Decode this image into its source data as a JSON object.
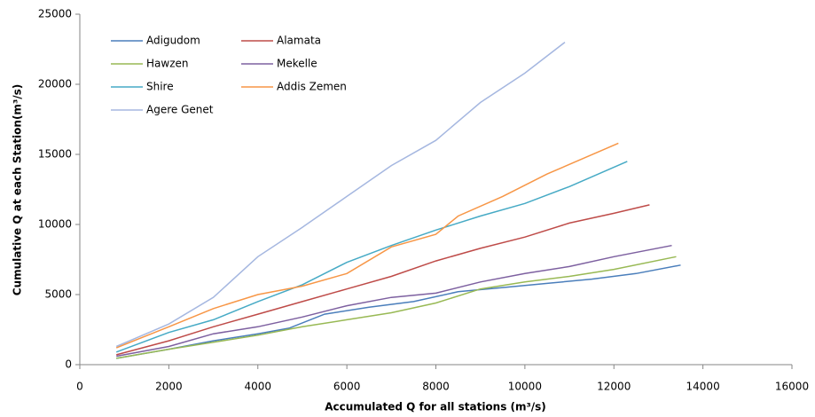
{
  "chart_data": {
    "type": "line",
    "x_label": "Accumulated Q for all stations (m³/s)",
    "y_label": "Cumulative Q at each Station(m³/s)",
    "xlim": [
      0,
      16000
    ],
    "xticks": [
      0,
      2000,
      4000,
      6000,
      8000,
      10000,
      12000,
      14000,
      16000
    ],
    "ylim": [
      0,
      25000
    ],
    "yticks": [
      0,
      5000,
      10000,
      15000,
      20000,
      25000
    ],
    "grid": false,
    "legend": "upper-left",
    "series": [
      {
        "name": "Adigudom",
        "color": "#4a7ebb",
        "x": [
          820,
          2000,
          3000,
          4000,
          4700,
          5500,
          6500,
          7500,
          8500,
          9500,
          10500,
          11500,
          12500,
          13500
        ],
        "values": [
          450,
          1100,
          1700,
          2200,
          2600,
          3600,
          4100,
          4500,
          5200,
          5500,
          5800,
          6100,
          6500,
          7100
        ]
      },
      {
        "name": "Alamata",
        "color": "#be4b48",
        "x": [
          820,
          2000,
          3000,
          4000,
          5000,
          6000,
          7000,
          8000,
          9000,
          10000,
          11000,
          12000,
          12800
        ],
        "values": [
          700,
          1700,
          2700,
          3600,
          4500,
          5400,
          6300,
          7400,
          8300,
          9100,
          10100,
          10800,
          11400
        ]
      },
      {
        "name": "Hawzen",
        "color": "#98b954",
        "x": [
          820,
          2000,
          3000,
          4000,
          5000,
          6000,
          7000,
          8000,
          9000,
          10000,
          11000,
          12000,
          13400
        ],
        "values": [
          450,
          1100,
          1600,
          2100,
          2700,
          3200,
          3700,
          4400,
          5400,
          5900,
          6300,
          6800,
          7700
        ]
      },
      {
        "name": "Mekelle",
        "color": "#7d60a0",
        "x": [
          820,
          2000,
          3000,
          4000,
          5000,
          6000,
          7000,
          8000,
          9000,
          10000,
          11000,
          12000,
          13300
        ],
        "values": [
          600,
          1300,
          2200,
          2700,
          3400,
          4200,
          4800,
          5100,
          5900,
          6500,
          7000,
          7700,
          8500
        ]
      },
      {
        "name": "Shire",
        "color": "#46aac5",
        "x": [
          820,
          2000,
          3000,
          4000,
          5000,
          6000,
          7000,
          8000,
          9000,
          10000,
          11000,
          12300
        ],
        "values": [
          900,
          2300,
          3200,
          4500,
          5700,
          7300,
          8500,
          9600,
          10600,
          11500,
          12700,
          14500
        ]
      },
      {
        "name": "Addis Zemen",
        "color": "#f79646",
        "x": [
          820,
          2000,
          3000,
          4000,
          5000,
          6000,
          7000,
          8000,
          8500,
          9500,
          10500,
          12100
        ],
        "values": [
          1200,
          2700,
          4000,
          5000,
          5600,
          6500,
          8400,
          9300,
          10600,
          12000,
          13600,
          15800
        ]
      },
      {
        "name": "Agere Genet",
        "color": "#a5b7e0",
        "x": [
          820,
          2000,
          3000,
          4000,
          5000,
          6000,
          7000,
          8000,
          9000,
          10000,
          10900
        ],
        "values": [
          1300,
          2900,
          4800,
          7700,
          9800,
          12000,
          14200,
          16000,
          18700,
          20800,
          23000
        ]
      }
    ]
  }
}
